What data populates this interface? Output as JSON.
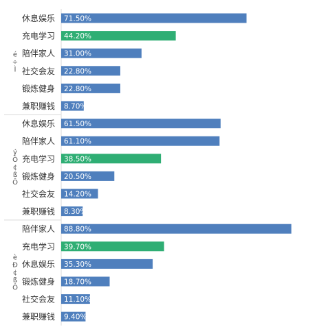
{
  "chart_data": {
    "type": "bar",
    "orientation": "horizontal",
    "xlim": [
      0,
      100
    ],
    "grid": false,
    "legend": "none",
    "colors": {
      "default": "#4f7fbd",
      "highlight": "#2fae74",
      "axis": "#d9d9d9"
    },
    "groups": [
      {
        "label": "é ÷ Ì",
        "items": [
          {
            "category": "休息娱乐",
            "value": 71.5,
            "label": "71.50%",
            "highlight": false
          },
          {
            "category": "充电学习",
            "value": 44.2,
            "label": "44.20%",
            "highlight": true
          },
          {
            "category": "陪伴家人",
            "value": 31.0,
            "label": "31.00%",
            "highlight": false
          },
          {
            "category": "社交会友",
            "value": 22.8,
            "label": "22.80%",
            "highlight": false
          },
          {
            "category": "锻炼健身",
            "value": 22.8,
            "label": "22.80%",
            "highlight": false
          },
          {
            "category": "兼职赚钱",
            "value": 8.7,
            "label": "8.70%",
            "highlight": false
          }
        ]
      },
      {
        "label": "ý Ô ¢ ß Ô",
        "items": [
          {
            "category": "休息娱乐",
            "value": 61.5,
            "label": "61.50%",
            "highlight": false
          },
          {
            "category": "陪伴家人",
            "value": 61.1,
            "label": "61.10%",
            "highlight": false
          },
          {
            "category": "充电学习",
            "value": 38.5,
            "label": "38.50%",
            "highlight": true
          },
          {
            "category": "锻炼健身",
            "value": 20.5,
            "label": "20.50%",
            "highlight": false
          },
          {
            "category": "社交会友",
            "value": 14.2,
            "label": "14.20%",
            "highlight": false
          },
          {
            "category": "兼职赚钱",
            "value": 8.3,
            "label": "8.30%",
            "highlight": false
          }
        ]
      },
      {
        "label": "è Ð ¢ ß Ô",
        "items": [
          {
            "category": "陪伴家人",
            "value": 88.8,
            "label": "88.80%",
            "highlight": false
          },
          {
            "category": "充电学习",
            "value": 39.7,
            "label": "39.70%",
            "highlight": true
          },
          {
            "category": "休息娱乐",
            "value": 35.3,
            "label": "35.30%",
            "highlight": false
          },
          {
            "category": "锻炼健身",
            "value": 18.7,
            "label": "18.70%",
            "highlight": false
          },
          {
            "category": "社交会友",
            "value": 11.1,
            "label": "11.10%",
            "highlight": false
          },
          {
            "category": "兼职赚钱",
            "value": 9.4,
            "label": "9.40%",
            "highlight": false
          }
        ]
      }
    ]
  }
}
